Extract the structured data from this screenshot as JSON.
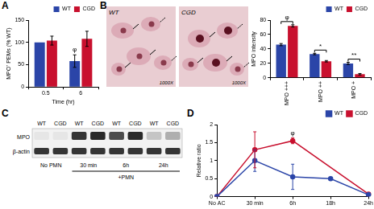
{
  "panel_labels": [
    "A",
    "B",
    "C",
    "D"
  ],
  "chart_data": [
    {
      "type": "bar",
      "categories": [
        "0.5",
        "6"
      ],
      "x_label": "Time (hr)",
      "y_label": "MPO⁺ PEMs (% WT)",
      "ylim": [
        0,
        150
      ],
      "yticks": [
        0,
        50,
        100,
        150
      ],
      "grid": false,
      "legend": "top-right",
      "series": [
        {
          "name": "WT",
          "color": "#2b45a8",
          "values": [
            100,
            58
          ],
          "errors": [
            0,
            14
          ]
        },
        {
          "name": "CGD",
          "color": "#c8102e",
          "values": [
            104,
            108
          ],
          "errors": [
            10,
            17
          ]
        }
      ],
      "annotations": [
        {
          "text": "φ",
          "category": "6",
          "series": "WT"
        }
      ]
    },
    {
      "type": "bar",
      "categories": [
        "MPO +++",
        "MPO ++",
        "MPO +"
      ],
      "y_label": "MPO intensity",
      "ylim": [
        0,
        80
      ],
      "yticks": [
        0,
        20,
        40,
        60,
        80
      ],
      "grid": false,
      "legend": "top-right",
      "series": [
        {
          "name": "WT",
          "color": "#2b45a8",
          "values": [
            46,
            33,
            20
          ],
          "errors": [
            1.5,
            1,
            1.5
          ]
        },
        {
          "name": "CGD",
          "color": "#c8102e",
          "values": [
            72,
            23,
            5
          ],
          "errors": [
            1.5,
            1,
            1
          ]
        }
      ],
      "annotations": [
        {
          "text": "φ",
          "category": "MPO +++"
        },
        {
          "text": "*",
          "category": "MPO ++"
        },
        {
          "text": "**",
          "category": "MPO +"
        }
      ]
    },
    {
      "type": "line",
      "categories": [
        "No AC",
        "30 min",
        "6h",
        "18h",
        "24h"
      ],
      "y_label": "Relative ratio",
      "ylim": [
        0,
        2
      ],
      "yticks": [
        0,
        0.5,
        1,
        1.5,
        2
      ],
      "grid": false,
      "legend": "top-right",
      "marker": "circle",
      "series": [
        {
          "name": "WT",
          "color": "#2b45a8",
          "values": [
            0,
            1.0,
            0.55,
            0.5,
            0.05
          ],
          "errors": [
            0,
            0.3,
            0.35,
            0,
            0
          ]
        },
        {
          "name": "CGD",
          "color": "#c8102e",
          "values": [
            0,
            1.3,
            1.55,
            null,
            0.07
          ],
          "errors": [
            0,
            0.5,
            0.08,
            0,
            0
          ]
        }
      ],
      "annotations": [
        {
          "text": "φ",
          "category": "6h",
          "series": "CGD"
        }
      ]
    }
  ],
  "micrograph": {
    "images": [
      {
        "label": "WT",
        "magnification": "1000X"
      },
      {
        "label": "CGD",
        "magnification": "1000X"
      }
    ]
  },
  "blot": {
    "rows": [
      "MPO",
      "β-actin"
    ],
    "groups": [
      {
        "label": "No PMN",
        "lanes": [
          "WT",
          "CGD"
        ],
        "MPO": [
          0.05,
          0.05
        ],
        "β-actin": [
          0.85,
          0.85
        ]
      },
      {
        "label": "30 min",
        "lanes": [
          "WT",
          "CGD"
        ],
        "MPO": [
          0.85,
          0.9
        ],
        "β-actin": [
          0.85,
          0.85
        ]
      },
      {
        "label": "6h",
        "lanes": [
          "WT",
          "CGD"
        ],
        "MPO": [
          0.75,
          0.9
        ],
        "β-actin": [
          0.85,
          0.85
        ]
      },
      {
        "label": "24h",
        "lanes": [
          "WT",
          "CGD"
        ],
        "MPO": [
          0.2,
          0.3
        ],
        "β-actin": [
          0.85,
          0.85
        ]
      }
    ],
    "bracket": {
      "label": "+PMN",
      "from": "30 min",
      "to": "24h"
    }
  }
}
